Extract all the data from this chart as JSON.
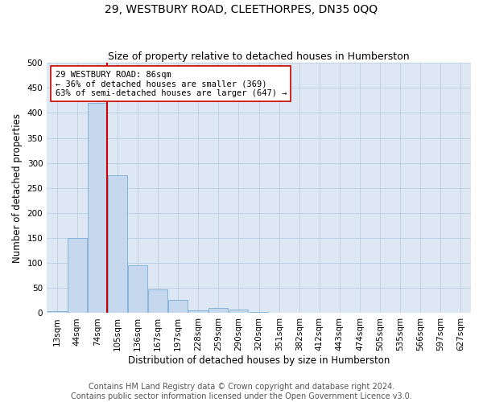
{
  "title": "29, WESTBURY ROAD, CLEETHORPES, DN35 0QQ",
  "subtitle": "Size of property relative to detached houses in Humberston",
  "xlabel": "Distribution of detached houses by size in Humberston",
  "ylabel": "Number of detached properties",
  "footer_line1": "Contains HM Land Registry data © Crown copyright and database right 2024.",
  "footer_line2": "Contains public sector information licensed under the Open Government Licence v3.0.",
  "bin_labels": [
    "13sqm",
    "44sqm",
    "74sqm",
    "105sqm",
    "136sqm",
    "167sqm",
    "197sqm",
    "228sqm",
    "259sqm",
    "290sqm",
    "320sqm",
    "351sqm",
    "382sqm",
    "412sqm",
    "443sqm",
    "474sqm",
    "505sqm",
    "535sqm",
    "566sqm",
    "597sqm",
    "627sqm"
  ],
  "bar_values": [
    4,
    150,
    420,
    275,
    95,
    48,
    27,
    6,
    10,
    7,
    3,
    0,
    0,
    0,
    0,
    0,
    0,
    0,
    0,
    0,
    0
  ],
  "bar_color": "#c5d8ee",
  "bar_edge_color": "#7aadd4",
  "red_line_bin_index": 2,
  "red_line_color": "#cc0000",
  "annotation_text": "29 WESTBURY ROAD: 86sqm\n← 36% of detached houses are smaller (369)\n63% of semi-detached houses are larger (647) →",
  "annotation_box_color": "#ffffff",
  "annotation_box_edge": "#cc0000",
  "ylim": [
    0,
    500
  ],
  "yticks": [
    0,
    50,
    100,
    150,
    200,
    250,
    300,
    350,
    400,
    450,
    500
  ],
  "bg_color": "#ffffff",
  "plot_bg_color": "#dde8f4",
  "grid_color": "#b8cfe0",
  "title_fontsize": 10,
  "subtitle_fontsize": 9,
  "axis_label_fontsize": 8.5,
  "tick_fontsize": 7.5,
  "annotation_fontsize": 7.5,
  "footer_fontsize": 7
}
